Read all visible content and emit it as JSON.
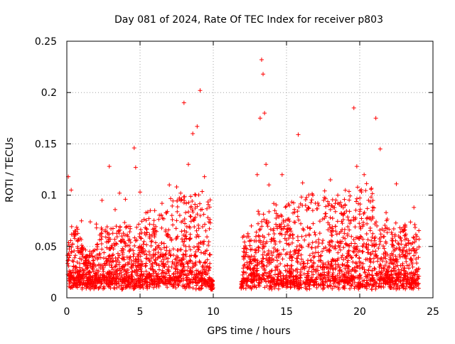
{
  "chart_data": {
    "type": "scatter",
    "title": "Day 081 of 2024, Rate Of TEC Index for receiver p803",
    "xlabel": "GPS time / hours",
    "ylabel": "ROTI / TECUs",
    "xlim": [
      0,
      25
    ],
    "ylim": [
      0,
      0.25
    ],
    "x_ticks": [
      {
        "value": 0,
        "label": "0"
      },
      {
        "value": 5,
        "label": "5"
      },
      {
        "value": 10,
        "label": "10"
      },
      {
        "value": 15,
        "label": "15"
      },
      {
        "value": 20,
        "label": "20"
      },
      {
        "value": 25,
        "label": "25"
      }
    ],
    "y_ticks": [
      {
        "value": 0,
        "label": "0"
      },
      {
        "value": 0.05,
        "label": "0.05"
      },
      {
        "value": 0.1,
        "label": "0.1"
      },
      {
        "value": 0.15,
        "label": "0.15"
      },
      {
        "value": 0.2,
        "label": "0.2"
      },
      {
        "value": 0.25,
        "label": "0.25"
      }
    ],
    "grid": true,
    "marker": "+",
    "series_color": "#ff0000",
    "data_gap_hours": [
      10.0,
      11.9
    ],
    "sample_points": [
      [
        0.1,
        0.118
      ],
      [
        0.3,
        0.105
      ],
      [
        0.5,
        0.062
      ],
      [
        1.0,
        0.075
      ],
      [
        1.6,
        0.074
      ],
      [
        2.4,
        0.095
      ],
      [
        2.9,
        0.128
      ],
      [
        3.3,
        0.086
      ],
      [
        3.6,
        0.102
      ],
      [
        4.0,
        0.096
      ],
      [
        4.6,
        0.146
      ],
      [
        4.7,
        0.127
      ],
      [
        5.0,
        0.103
      ],
      [
        6.0,
        0.085
      ],
      [
        6.5,
        0.092
      ],
      [
        7.0,
        0.11
      ],
      [
        7.5,
        0.108
      ],
      [
        7.7,
        0.096
      ],
      [
        8.0,
        0.19
      ],
      [
        8.3,
        0.13
      ],
      [
        8.6,
        0.16
      ],
      [
        8.9,
        0.167
      ],
      [
        9.1,
        0.202
      ],
      [
        9.4,
        0.118
      ],
      [
        9.8,
        0.073
      ],
      [
        12.6,
        0.07
      ],
      [
        13.0,
        0.12
      ],
      [
        13.2,
        0.175
      ],
      [
        13.3,
        0.232
      ],
      [
        13.4,
        0.218
      ],
      [
        13.5,
        0.18
      ],
      [
        13.6,
        0.13
      ],
      [
        13.8,
        0.11
      ],
      [
        14.2,
        0.085
      ],
      [
        14.7,
        0.12
      ],
      [
        15.2,
        0.09
      ],
      [
        15.8,
        0.159
      ],
      [
        16.1,
        0.112
      ],
      [
        16.3,
        0.09
      ],
      [
        16.8,
        0.1
      ],
      [
        17.2,
        0.09
      ],
      [
        18.0,
        0.115
      ],
      [
        18.5,
        0.1
      ],
      [
        19.0,
        0.09
      ],
      [
        19.6,
        0.185
      ],
      [
        19.8,
        0.128
      ],
      [
        20.3,
        0.12
      ],
      [
        20.6,
        0.095
      ],
      [
        21.1,
        0.175
      ],
      [
        21.4,
        0.145
      ],
      [
        21.8,
        0.083
      ],
      [
        22.5,
        0.111
      ],
      [
        23.1,
        0.07
      ],
      [
        23.7,
        0.088
      ],
      [
        23.9,
        0.06
      ]
    ]
  }
}
